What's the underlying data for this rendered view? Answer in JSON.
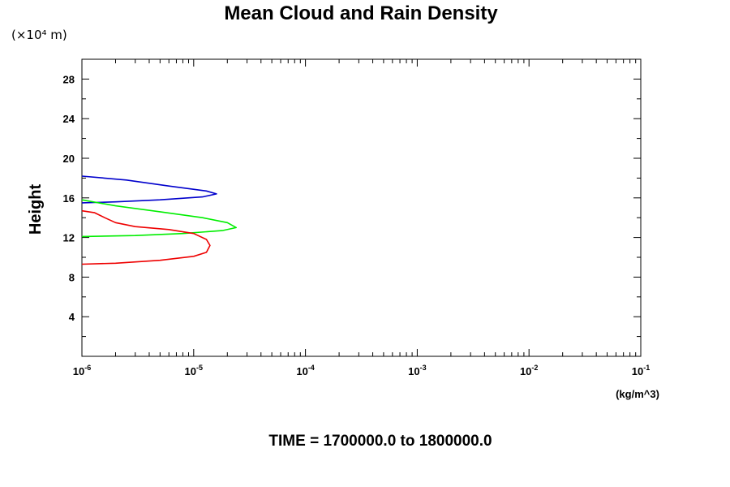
{
  "chart_data": {
    "type": "line",
    "title": "Mean Cloud and Rain Density",
    "y_unit_label": "(×10⁴ m)",
    "ylabel": "Height",
    "x_unit_label": "(kg/m^3)",
    "footer": "TIME = 1700000.0 to 1800000.0",
    "xscale": "log",
    "xlim": [
      1e-06,
      0.1
    ],
    "ylim": [
      0,
      30
    ],
    "x_tick_labels": [
      {
        "base": "10",
        "exp": "-6"
      },
      {
        "base": "10",
        "exp": "-5"
      },
      {
        "base": "10",
        "exp": "-4"
      },
      {
        "base": "10",
        "exp": "-3"
      },
      {
        "base": "10",
        "exp": "-2"
      },
      {
        "base": "10",
        "exp": "-1"
      }
    ],
    "y_ticks": [
      4,
      8,
      12,
      16,
      20,
      24,
      28
    ],
    "grid": false,
    "series": [
      {
        "color": "#0000cc",
        "points": [
          [
            1e-06,
            18.2
          ],
          [
            2.5e-06,
            17.8
          ],
          [
            6e-06,
            17.2
          ],
          [
            1.3e-05,
            16.7
          ],
          [
            1.6e-05,
            16.4
          ],
          [
            1.2e-05,
            16.1
          ],
          [
            5e-06,
            15.8
          ],
          [
            2e-06,
            15.6
          ],
          [
            1e-06,
            15.5
          ]
        ]
      },
      {
        "color": "#00ee00",
        "points": [
          [
            1e-06,
            15.8
          ],
          [
            2e-06,
            15.2
          ],
          [
            5e-06,
            14.6
          ],
          [
            1.2e-05,
            14.0
          ],
          [
            2e-05,
            13.5
          ],
          [
            2.4e-05,
            13.0
          ],
          [
            1.8e-05,
            12.7
          ],
          [
            8e-06,
            12.4
          ],
          [
            3e-06,
            12.2
          ],
          [
            1e-06,
            12.1
          ]
        ]
      },
      {
        "color": "#ee0000",
        "points": [
          [
            1e-06,
            14.7
          ],
          [
            1.3e-06,
            14.5
          ],
          [
            1.6e-06,
            14.0
          ],
          [
            2e-06,
            13.5
          ],
          [
            3e-06,
            13.1
          ],
          [
            6e-06,
            12.8
          ],
          [
            1e-05,
            12.4
          ],
          [
            1.3e-05,
            11.8
          ],
          [
            1.4e-05,
            11.2
          ],
          [
            1.3e-05,
            10.5
          ],
          [
            1e-05,
            10.1
          ],
          [
            5e-06,
            9.7
          ],
          [
            2e-06,
            9.4
          ],
          [
            1e-06,
            9.3
          ]
        ]
      }
    ]
  }
}
